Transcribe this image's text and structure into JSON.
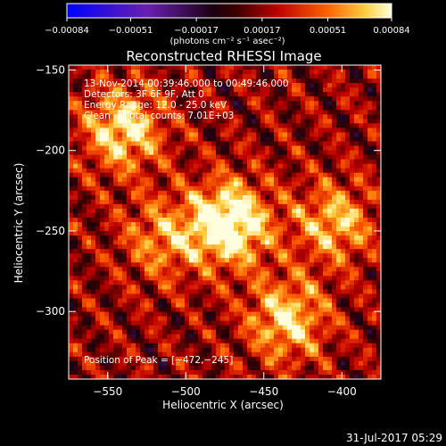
{
  "chart_data": {
    "type": "heatmap",
    "title": "Reconstructed RHESSI Image",
    "xlabel": "Heliocentric X (arcsec)",
    "ylabel": "Heliocentric Y (arcsec)",
    "xlim": [
      -575,
      -375
    ],
    "ylim": [
      -342,
      -147
    ],
    "x_ticks": [
      -550,
      -500,
      -450,
      -400
    ],
    "x_tick_labels": [
      "−550",
      "−500",
      "−450",
      "−400"
    ],
    "y_ticks": [
      -150,
      -200,
      -250,
      -300
    ],
    "y_tick_labels": [
      "−150",
      "−200",
      "−250",
      "−300"
    ],
    "colorbar": {
      "colormap": "rhessi-blue-purple-red-yellow",
      "range": [
        -0.00084,
        0.00084
      ],
      "tick_values": [
        -0.00084,
        -0.00051,
        -0.00017,
        0.00017,
        0.00051,
        0.00084
      ],
      "tick_labels": [
        "−0.00084",
        "−0.00051",
        "−0.00017",
        "0.00017",
        "0.00051",
        "0.00084"
      ],
      "unit_label": "(photons cm⁻² s⁻¹ asec⁻²)"
    },
    "sources": [
      {
        "x": -472,
        "y": -245,
        "peak": 0.00084
      },
      {
        "x": -540,
        "y": -187,
        "peak": 0.00062
      },
      {
        "x": -435,
        "y": -305,
        "peak": 0.00058
      },
      {
        "x": -405,
        "y": -245,
        "peak": 0.0005
      },
      {
        "x": -515,
        "y": -255,
        "peak": 0.0004
      }
    ],
    "annotations": {
      "line1": "13-Nov-2014 00:39:46.000 to 00:49:46.000",
      "line2": "Detectors: 3F 6F 9F, Att 0",
      "line3": "Energy Range: 12.0 - 25.0 keV",
      "line4": "Clean     Total counts: 7.01E+03",
      "peak": "Position of Peak = [−472,−245]"
    },
    "footer": "31-Jul-2017 05:29"
  }
}
